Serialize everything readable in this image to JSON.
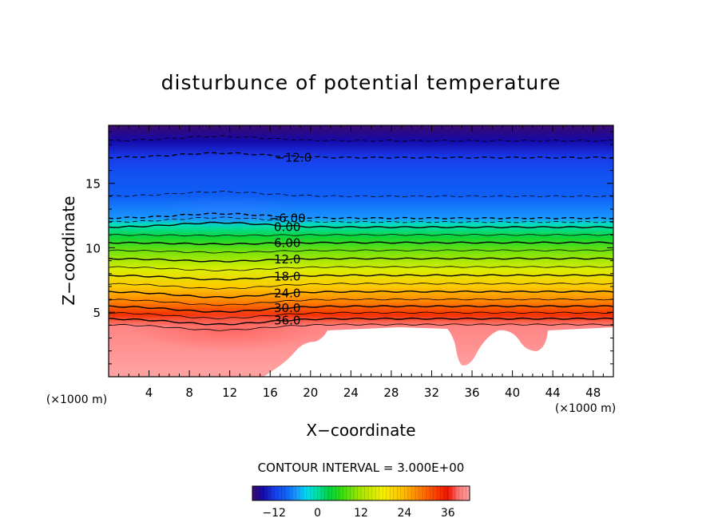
{
  "chart_data": {
    "type": "heatmap",
    "title": "disturbunce of potential temperature",
    "xlabel": "X−coordinate",
    "ylabel": "Z−coordinate",
    "x_unit": "(×1000 m)",
    "z_unit": "(×1000 m)",
    "xlim": [
      0,
      50
    ],
    "ylim": [
      0,
      19.5
    ],
    "x_ticks": [
      "4",
      "8",
      "12",
      "16",
      "20",
      "24",
      "28",
      "32",
      "36",
      "40",
      "44",
      "48"
    ],
    "y_ticks": [
      "5",
      "10",
      "15"
    ],
    "contour_labels": [
      "−12.0",
      "−6.00",
      "0.00",
      "6.00",
      "12.0",
      "18.0",
      "24.0",
      "30.0",
      "36.0"
    ],
    "contour_interval_text": "CONTOUR INTERVAL = 3.000E+00",
    "colorbar": {
      "min": -18,
      "max": 42,
      "ticks": [
        "−12",
        "0",
        "12",
        "24",
        "36"
      ]
    },
    "profile": [
      {
        "z": 0.5,
        "value": 42
      },
      {
        "z": 3.9,
        "value": 40
      },
      {
        "z": 4.8,
        "value": 34
      },
      {
        "z": 5.8,
        "value": 28
      },
      {
        "z": 7.0,
        "value": 22
      },
      {
        "z": 8.3,
        "value": 16
      },
      {
        "z": 9.6,
        "value": 10
      },
      {
        "z": 10.8,
        "value": 4
      },
      {
        "z": 11.8,
        "value": -1
      },
      {
        "z": 12.3,
        "value": -6
      },
      {
        "z": 14.0,
        "value": -9
      },
      {
        "z": 15.6,
        "value": -10
      },
      {
        "z": 17.0,
        "value": -12
      },
      {
        "z": 18.3,
        "value": -15
      },
      {
        "z": 19.5,
        "value": -18
      }
    ]
  }
}
